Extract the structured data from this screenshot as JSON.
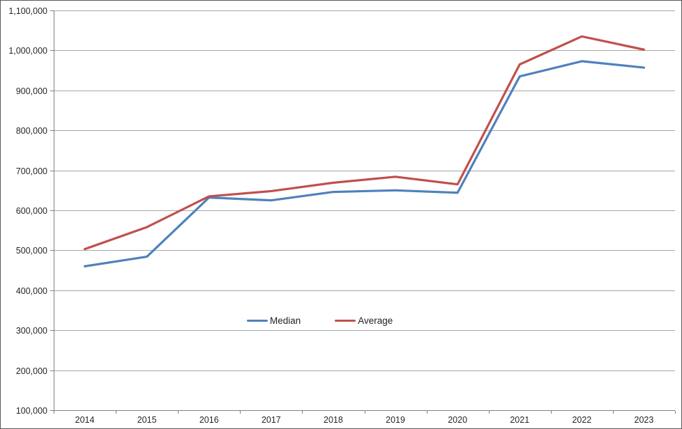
{
  "chart_data": {
    "type": "line",
    "title": "",
    "xlabel": "",
    "ylabel": "",
    "categories": [
      "2014",
      "2015",
      "2016",
      "2017",
      "2018",
      "2019",
      "2020",
      "2021",
      "2022",
      "2023"
    ],
    "series": [
      {
        "name": "Median",
        "color": "#4F81BD",
        "values": [
          460000,
          484000,
          632000,
          625000,
          646000,
          650000,
          644000,
          935000,
          973000,
          957000
        ]
      },
      {
        "name": "Average",
        "color": "#C0504D",
        "values": [
          503000,
          558000,
          635000,
          648000,
          669000,
          684000,
          665000,
          965000,
          1035000,
          1002000
        ]
      }
    ],
    "ylim": [
      100000,
      1100000
    ],
    "ytick_step": 100000,
    "y_tick_labels": [
      "100,000",
      "200,000",
      "300,000",
      "400,000",
      "500,000",
      "600,000",
      "700,000",
      "800,000",
      "900,000",
      "1,000,000",
      "1,100,000"
    ],
    "grid": true,
    "legend_position": "inside-center-lower"
  },
  "colors": {
    "gridline": "#A6A6A6",
    "axis": "#808080",
    "tick_text": "#262626",
    "frame_border": "#595959",
    "background": "#FFFFFF"
  }
}
